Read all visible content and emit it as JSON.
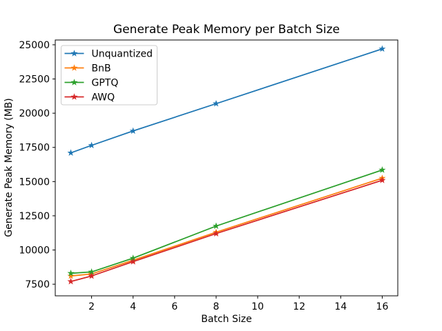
{
  "chart_data": {
    "type": "line",
    "title": "Generate Peak Memory per Batch Size",
    "xlabel": "Batch Size",
    "ylabel": "Generate Peak Memory (MB)",
    "x": [
      1,
      2,
      4,
      8,
      16
    ],
    "series": [
      {
        "name": "Unquantized",
        "color": "#1f77b4",
        "values": [
          17100,
          17650,
          18700,
          20700,
          24700
        ]
      },
      {
        "name": "BnB",
        "color": "#ff7f0e",
        "values": [
          8100,
          8250,
          9250,
          11300,
          15250
        ]
      },
      {
        "name": "GPTQ",
        "color": "#2ca02c",
        "values": [
          8300,
          8400,
          9400,
          11750,
          15850
        ]
      },
      {
        "name": "AWQ",
        "color": "#d62728",
        "values": [
          7700,
          8100,
          9150,
          11200,
          15100
        ]
      }
    ],
    "xticks": [
      2,
      4,
      6,
      8,
      10,
      12,
      14,
      16
    ],
    "yticks": [
      7500,
      10000,
      12500,
      15000,
      17500,
      20000,
      22500,
      25000
    ],
    "xlim": [
      0.25,
      16.75
    ],
    "ylim": [
      6650,
      25350
    ],
    "marker": "star",
    "grid": false,
    "legend_position": "upper-left",
    "background_color": "#ffffff",
    "spine_color": "#000000",
    "legend_border_color": "#cccccc"
  }
}
